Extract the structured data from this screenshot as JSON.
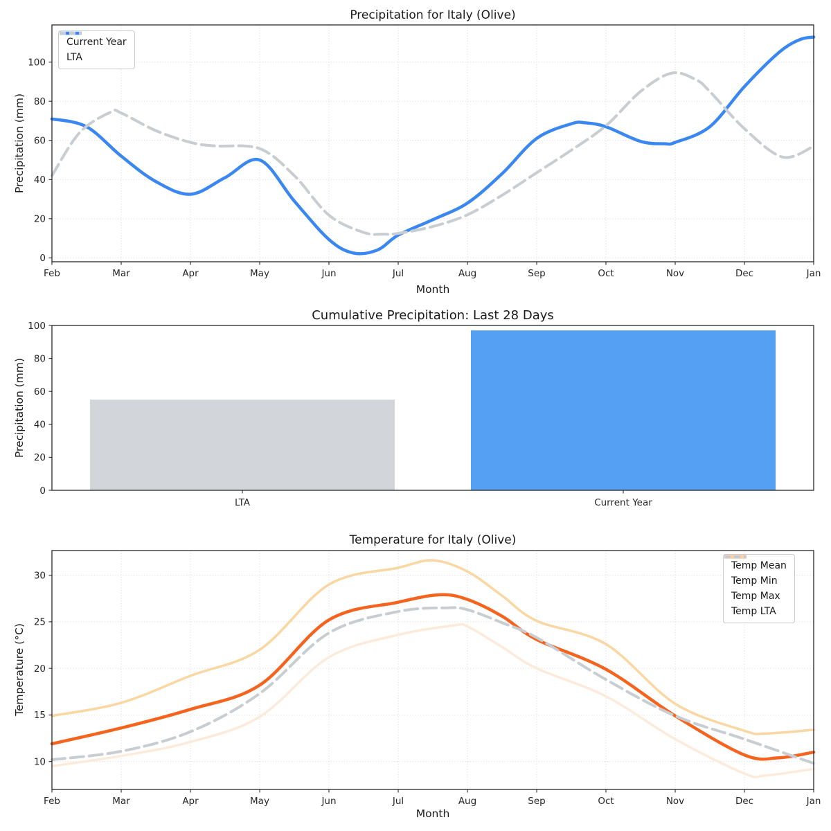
{
  "figure": {
    "background": "#ffffff",
    "text_color": "#1a1a1a",
    "accent_blue": "#3a87f2",
    "accent_orange": "#f5641e",
    "neutral_gray": "#c8cdd2"
  },
  "chart_data": [
    {
      "type": "line",
      "title": "Precipitation for Italy (Olive)",
      "xlabel": "Month",
      "ylabel": "Precipitation (mm)",
      "x_tick_labels": [
        "Feb",
        "Mar",
        "Apr",
        "May",
        "Jun",
        "Jul",
        "Aug",
        "Sep",
        "Oct",
        "Nov",
        "Dec",
        "Jan"
      ],
      "y_ticks": [
        0,
        20,
        40,
        60,
        80,
        100
      ],
      "ylim": [
        -2,
        119
      ],
      "grid": true,
      "legend_position": "top-left",
      "series": [
        {
          "name": "Current Year",
          "color": "#3a87f2",
          "style": "solid",
          "width": 4.5,
          "x": [
            0,
            0.5,
            1,
            1.5,
            2,
            2.5,
            3,
            3.5,
            4,
            4.35,
            4.7,
            5,
            5.5,
            6,
            6.5,
            7,
            7.5,
            7.7,
            8,
            8.5,
            8.85,
            9,
            9.5,
            10,
            10.5,
            10.8,
            11
          ],
          "y": [
            71,
            67,
            52,
            39,
            32.5,
            41,
            50,
            29,
            9.4,
            2.5,
            4,
            11.6,
            19.5,
            28,
            43,
            61,
            68.5,
            69,
            67,
            59.5,
            58.3,
            59,
            67,
            87.5,
            105,
            111.5,
            112.8
          ]
        },
        {
          "name": "LTA",
          "color": "#c8cdd2",
          "style": "dashed",
          "width": 4,
          "x": [
            0,
            0.4,
            0.85,
            1,
            1.5,
            2,
            2.35,
            3,
            3.5,
            4,
            4.5,
            4.8,
            5,
            5.5,
            6,
            6.5,
            7,
            7.5,
            8,
            8.5,
            8.95,
            9.3,
            9.5,
            10,
            10.55,
            11
          ],
          "y": [
            42,
            64,
            74.5,
            74,
            65,
            59,
            57.2,
            55.8,
            42,
            21.8,
            13,
            12.1,
            12.5,
            16,
            22,
            32,
            43.5,
            55,
            67.5,
            85,
            94.4,
            91,
            85,
            66,
            51.5,
            57
          ]
        }
      ]
    },
    {
      "type": "bar",
      "title": "Cumulative Precipitation: Last 28 Days",
      "ylabel": "Precipitation (mm)",
      "categories": [
        "LTA",
        "Current Year"
      ],
      "values": [
        55,
        97
      ],
      "bar_colors": [
        "#d2d6da",
        "#55a0f2"
      ],
      "y_ticks": [
        0,
        20,
        40,
        60,
        80,
        100
      ],
      "ylim": [
        0,
        100
      ],
      "grid": false
    },
    {
      "type": "line",
      "title": "Temperature for Italy (Olive)",
      "xlabel": "Month",
      "ylabel": "Temperature (°C)",
      "x_tick_labels": [
        "Feb",
        "Mar",
        "Apr",
        "May",
        "Jun",
        "Jul",
        "Aug",
        "Sep",
        "Oct",
        "Nov",
        "Dec",
        "Jan"
      ],
      "y_ticks": [
        10,
        15,
        20,
        25,
        30
      ],
      "ylim": [
        7.0,
        32.65
      ],
      "grid": true,
      "legend_position": "top-right",
      "series": [
        {
          "name": "Temp Mean",
          "color": "#f5641e",
          "style": "solid",
          "width": 4.5,
          "x": [
            0,
            1,
            2,
            3,
            4,
            5,
            5.6,
            6,
            6.5,
            7,
            8,
            9,
            10,
            10.5,
            11
          ],
          "y": [
            11.9,
            13.6,
            15.6,
            18.2,
            25.2,
            27.1,
            27.9,
            27.4,
            25.6,
            23.1,
            19.9,
            14.9,
            10.7,
            10.4,
            11.0
          ]
        },
        {
          "name": "Temp Min",
          "color": "#fcebdb",
          "style": "solid",
          "width": 3.5,
          "x": [
            0,
            1,
            2,
            3,
            4,
            5,
            5.8,
            6,
            6.5,
            7,
            8,
            9,
            10,
            10.3,
            11
          ],
          "y": [
            9.5,
            10.6,
            12.1,
            14.8,
            21.2,
            23.6,
            24.6,
            24.5,
            22.3,
            20.0,
            17.0,
            12.4,
            8.7,
            8.5,
            9.2
          ]
        },
        {
          "name": "Temp Max",
          "color": "#fad7a2",
          "style": "solid",
          "width": 3.5,
          "x": [
            0,
            1,
            2,
            3,
            4,
            5,
            5.5,
            6,
            6.5,
            7,
            8,
            9,
            10,
            10.3,
            11
          ],
          "y": [
            14.9,
            16.3,
            19.2,
            22.0,
            29.0,
            30.8,
            31.6,
            30.4,
            27.8,
            25.1,
            22.6,
            16.2,
            13.3,
            13.0,
            13.4
          ]
        },
        {
          "name": "Temp LTA",
          "color": "#c8cdd2",
          "style": "dashed",
          "width": 4,
          "x": [
            0,
            1,
            2,
            3,
            4,
            5,
            5.7,
            6,
            6.5,
            7,
            8,
            9,
            10,
            11
          ],
          "y": [
            10.2,
            11.1,
            13.2,
            17.3,
            23.8,
            26.1,
            26.5,
            26.3,
            24.9,
            23.3,
            18.8,
            14.9,
            12.4,
            9.8
          ]
        }
      ]
    }
  ]
}
